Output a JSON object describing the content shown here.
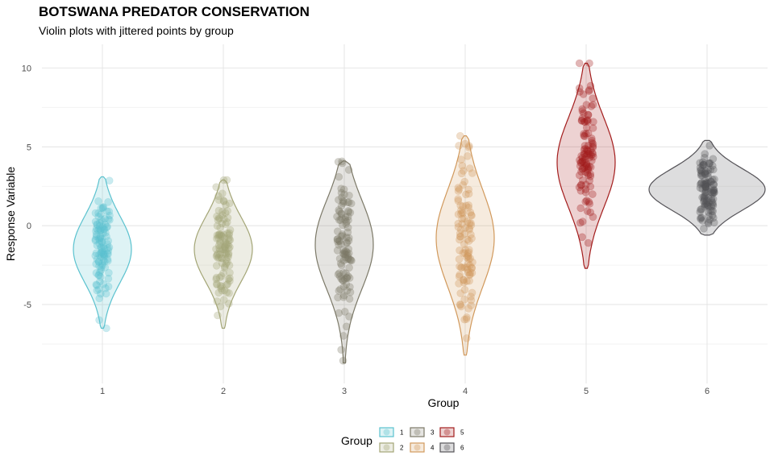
{
  "chart_data": {
    "type": "violin",
    "title": "BOTSWANA PREDATOR CONSERVATION",
    "subtitle": "Violin plots with jittered points by group",
    "xlabel": "Group",
    "ylabel": "Response Variable",
    "ylim": [
      -10,
      11.5
    ],
    "y_ticks": [
      -5,
      0,
      5,
      10
    ],
    "grid": true,
    "legend": {
      "title": "Group",
      "position": "bottom"
    },
    "groups": [
      {
        "name": "1",
        "color": "#5bc2cf",
        "min": -6.5,
        "max": 3.1,
        "peak": -1.5
      },
      {
        "name": "2",
        "color": "#a3a576",
        "min": -6.5,
        "max": 2.9,
        "peak": -1.5
      },
      {
        "name": "3",
        "color": "#7c7968",
        "min": -8.7,
        "max": 4.1,
        "peak": -1.2
      },
      {
        "name": "4",
        "color": "#d1995c",
        "min": -8.2,
        "max": 5.7,
        "peak": -0.8
      },
      {
        "name": "5",
        "color": "#a31d1d",
        "min": -2.7,
        "max": 10.3,
        "peak": 4.0
      },
      {
        "name": "6",
        "color": "#555358",
        "min": -0.6,
        "max": 5.4,
        "peak": 2.3
      }
    ]
  }
}
